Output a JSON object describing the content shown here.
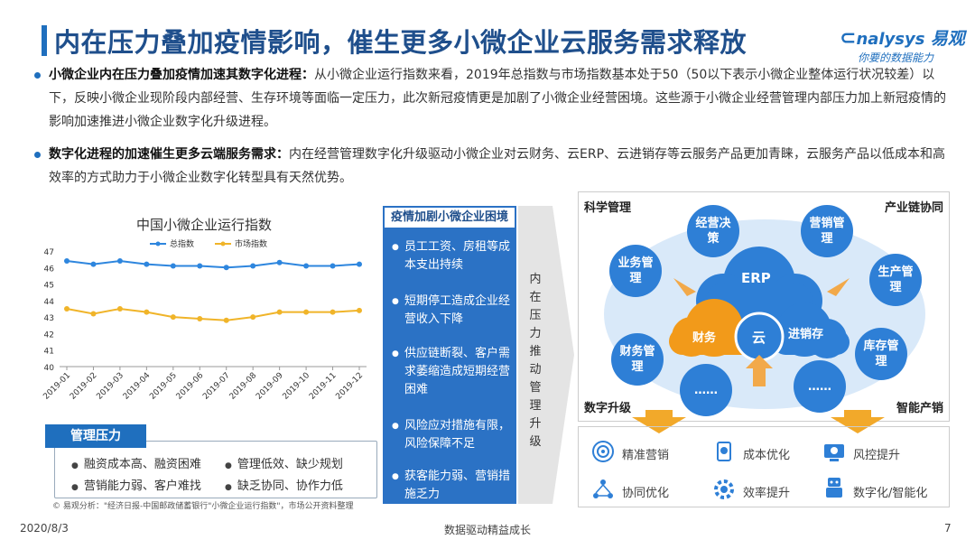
{
  "header": {
    "title": "内在压力叠加疫情影响，催生更多小微企业云服务需求释放",
    "logo_prefix": "nalysys",
    "logo_brand": "易观",
    "logo_tagline": "你要的数据能力"
  },
  "bullets": [
    {
      "bold": "小微企业内在压力叠加疫情加速其数字化进程：",
      "text": "从小微企业运行指数来看，2019年总指数与市场指数基本处于50（50以下表示小微企业整体运行状况较差）以下，反映小微企业现阶段内部经营、生存环境等面临一定压力，此次新冠疫情更是加剧了小微企业经营困境。这些源于小微企业经营管理内部压力加上新冠疫情的影响加速推进小微企业数字化升级进程。"
    },
    {
      "bold": "数字化进程的加速催生更多云端服务需求：",
      "text": "内在经营管理数字化升级驱动小微企业对云财务、云ERP、云进销存等云服务产品更加青睐，云服务产品以低成本和高效率的方式助力于小微企业数字化转型具有天然优势。"
    }
  ],
  "chart_data": {
    "type": "line",
    "title": "中国小微企业运行指数",
    "categories": [
      "2019-01",
      "2019-02",
      "2019-03",
      "2019-04",
      "2019-05",
      "2019-06",
      "2019-07",
      "2019-08",
      "2019-09",
      "2019-10",
      "2019-11",
      "2019-12"
    ],
    "series": [
      {
        "name": "总指数",
        "color": "#2e86de",
        "values": [
          46.4,
          46.2,
          46.4,
          46.2,
          46.1,
          46.1,
          46.0,
          46.1,
          46.3,
          46.1,
          46.1,
          46.2
        ]
      },
      {
        "name": "市场指数",
        "color": "#f0b429",
        "values": [
          43.5,
          43.2,
          43.5,
          43.3,
          43.0,
          42.9,
          42.8,
          43.0,
          43.3,
          43.3,
          43.3,
          43.4
        ]
      }
    ],
    "ylim": [
      40,
      47
    ],
    "yticks": [
      "40",
      "41",
      "42",
      "43",
      "44",
      "45",
      "46",
      "47"
    ],
    "legend": "top"
  },
  "pressure": {
    "label": "管理压力",
    "items": [
      "融资成本高、融资困难",
      "管理低效、缺少规划",
      "营销能力弱、客户难找",
      "缺乏协同、协作力低"
    ]
  },
  "source": "© 易观分析：\"经济日报-中国邮政储蓄银行\"小微企业运行指数\"，市场公开资料整理",
  "panel": {
    "title": "疫情加剧小微企业困境",
    "items": [
      "员工工资、房租等成本支出持续",
      "短期停工造成企业经营收入下降",
      "供应链断裂、客户需求萎缩造成短期经营困难",
      "风险应对措施有限，风险保障不足",
      "获客能力弱、营销措施乏力"
    ]
  },
  "arrow_text": "内在压力推动管理升级",
  "diagram": {
    "corners": [
      "科学管理",
      "产业链协同",
      "数字升级",
      "智能产销"
    ],
    "bubbles": [
      "经营决策",
      "营销管理",
      "业务管理",
      "生产管理",
      "财务管理",
      "库存管理",
      "……",
      "……"
    ],
    "cloud": [
      "ERP",
      "财务",
      "云",
      "进销存"
    ]
  },
  "benefits": [
    {
      "label": "精准营销",
      "icon": "target-icon"
    },
    {
      "label": "成本优化",
      "icon": "cost-icon"
    },
    {
      "label": "风控提升",
      "icon": "risk-icon"
    },
    {
      "label": "协同优化",
      "icon": "network-icon"
    },
    {
      "label": "效率提升",
      "icon": "gear-icon"
    },
    {
      "label": "数字化/智能化",
      "icon": "robot-icon"
    }
  ],
  "footer": {
    "date": "2020/8/3",
    "center": "数据驱动精益成长",
    "page": "7"
  }
}
